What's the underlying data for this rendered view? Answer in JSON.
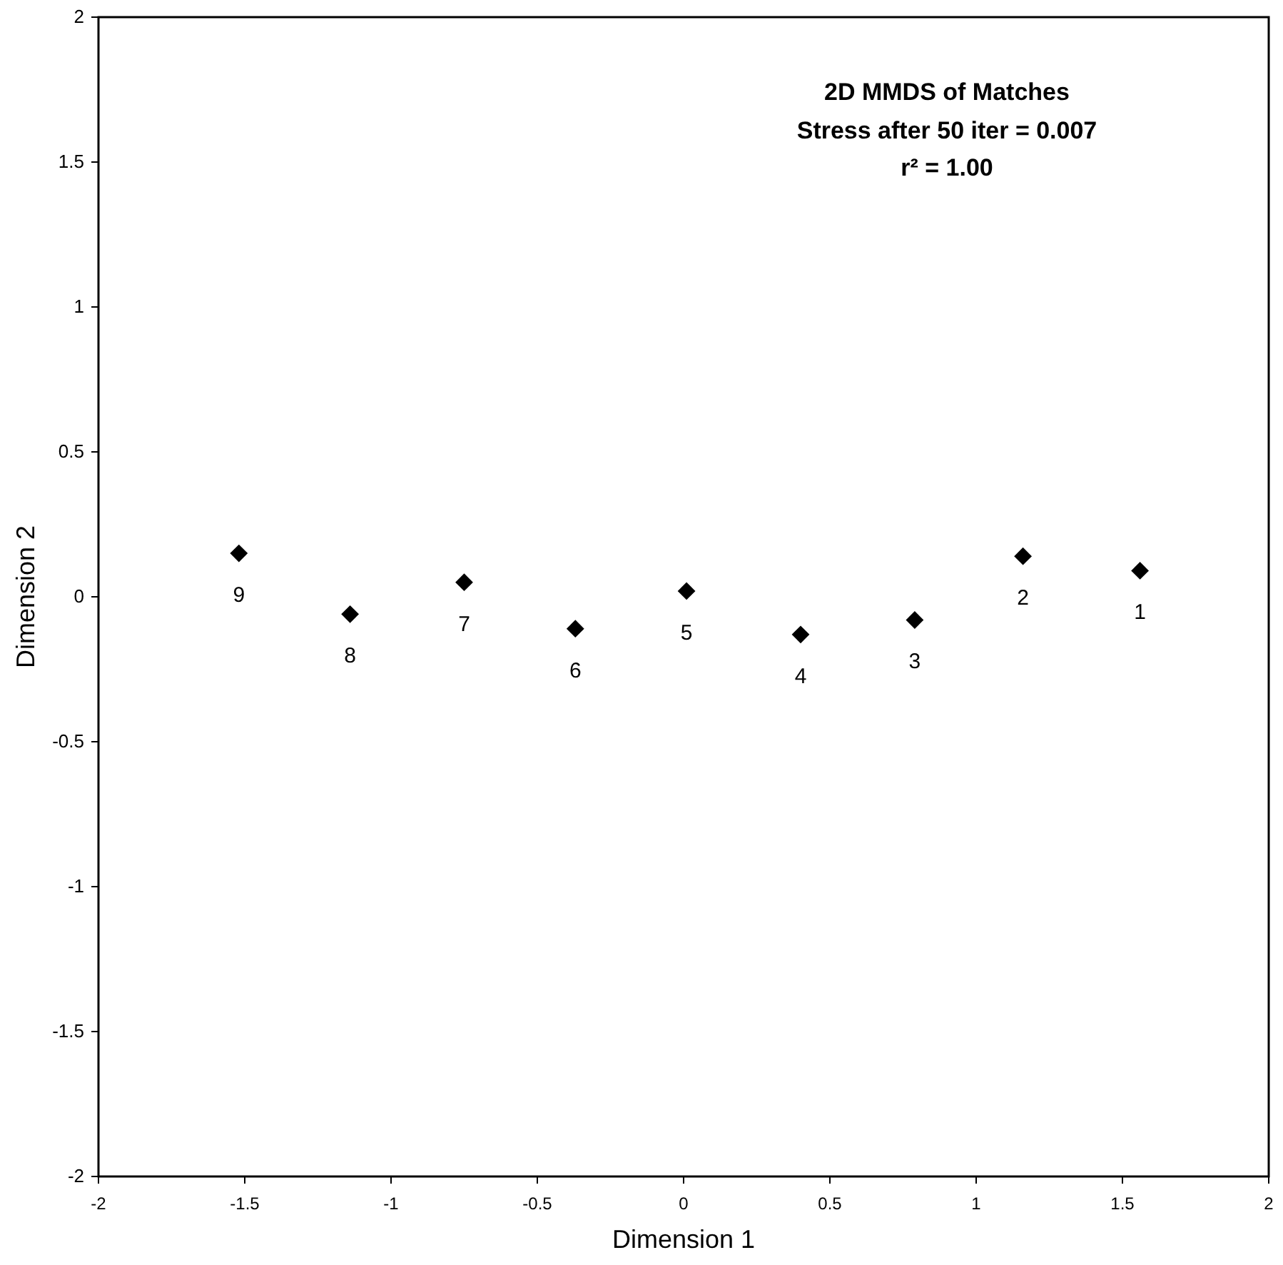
{
  "chart_data": {
    "type": "scatter",
    "title": "2D MMDS of Matches",
    "subtitle": "Stress after 50 iter = 0.007\nr² = 1.00",
    "xlabel": "Dimension 1",
    "ylabel": "Dimension 2",
    "x": [
      -1.52,
      -1.14,
      -0.75,
      -0.37,
      0.01,
      0.4,
      0.79,
      1.16,
      1.56
    ],
    "values": [
      0.15,
      -0.06,
      0.05,
      -0.11,
      0.02,
      -0.13,
      -0.08,
      0.14,
      0.09
    ],
    "color": "#000000",
    "marker": "diamond",
    "xlim": [
      -2,
      2
    ],
    "xticks": [
      -2,
      -1.5,
      -1,
      -0.5,
      0,
      0.5,
      1,
      1.5,
      2
    ],
    "ylim": [
      -2,
      2
    ],
    "yticks": [
      -2,
      -1.5,
      -1,
      -0.5,
      0,
      0.5,
      1,
      1.5,
      2
    ],
    "annotations": [
      {
        "text": "9",
        "x": -1.52,
        "y": 0.15
      },
      {
        "text": "8",
        "x": -1.14,
        "y": -0.06
      },
      {
        "text": "7",
        "x": -0.75,
        "y": 0.05
      },
      {
        "text": "6",
        "x": -0.37,
        "y": -0.11
      },
      {
        "text": "5",
        "x": 0.01,
        "y": 0.02
      },
      {
        "text": "4",
        "x": 0.4,
        "y": -0.13
      },
      {
        "text": "3",
        "x": 0.79,
        "y": -0.08
      },
      {
        "text": "2",
        "x": 1.16,
        "y": 0.14
      },
      {
        "text": "1",
        "x": 1.56,
        "y": 0.09
      }
    ]
  }
}
